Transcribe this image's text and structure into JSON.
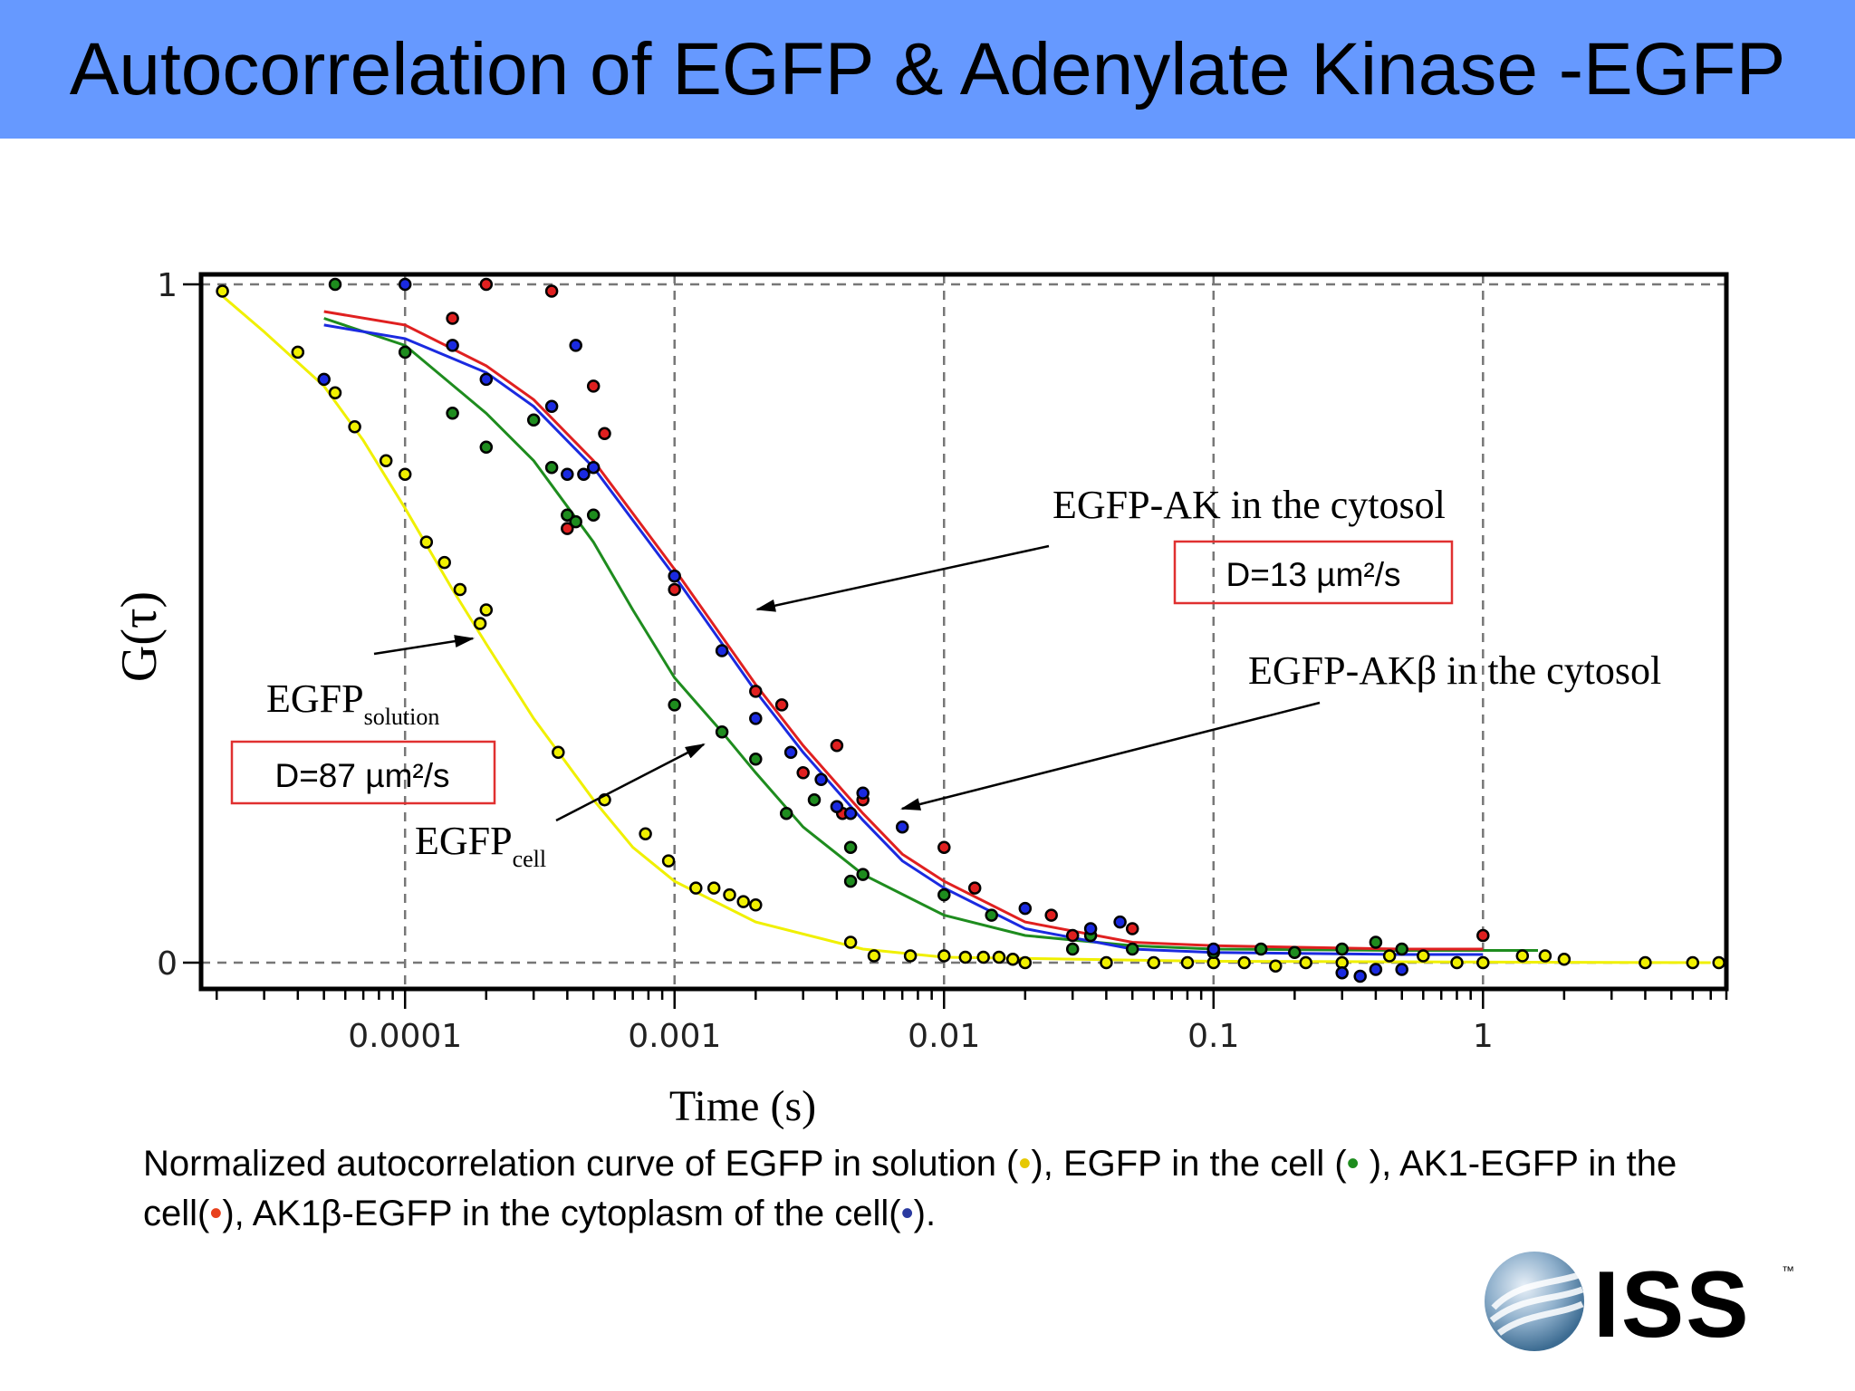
{
  "title": "Autocorrelation of EGFP & Adenylate Kinase -EGFP",
  "caption": {
    "t1": "Normalized autocorrelation curve of EGFP in solution (",
    "d1": "•",
    "t2": "), EGFP in the cell (",
    "d2": "•",
    "t3": " ), AK1-EGFP in the cell(",
    "d3": "•",
    "t4": "), AK1β-EGFP in the cytoplasm of the cell(",
    "d4": "•",
    "t5": ")."
  },
  "annotations": {
    "egfp_ak": "EGFP-AK in the cytosol",
    "egfp_ak_d": "D=13 µm²/s",
    "egfp_akb": "EGFP-AKβ in the cytosol",
    "egfp_solution_main": "EGFP",
    "egfp_solution_sub": "solution",
    "egfp_solution_d": "D=87 µm²/s",
    "egfp_cell_main": "EGFP",
    "egfp_cell_sub": "cell"
  },
  "logo": {
    "text": "ISS",
    "tm": "™"
  },
  "chart_data": {
    "type": "scatter",
    "title": "",
    "xlabel": "Time (s)",
    "ylabel": "G(τ)",
    "xscale": "log",
    "xlim": [
      1.75e-05,
      8
    ],
    "ylim": [
      0,
      1
    ],
    "xticks": [
      {
        "value": 0.0001,
        "label": "0.0001"
      },
      {
        "value": 0.001,
        "label": "0.001"
      },
      {
        "value": 0.01,
        "label": "0.01"
      },
      {
        "value": 0.1,
        "label": "0.1"
      },
      {
        "value": 1,
        "label": "1"
      }
    ],
    "yticks": [
      {
        "value": 0,
        "label": "0"
      },
      {
        "value": 1,
        "label": "1"
      }
    ],
    "grid": true,
    "series": [
      {
        "color": "#f0f000",
        "curve": [
          [
            2e-05,
            0.99
          ],
          [
            3e-05,
            0.93
          ],
          [
            5e-05,
            0.85
          ],
          [
            7e-05,
            0.77
          ],
          [
            0.0001,
            0.67
          ],
          [
            0.00015,
            0.55
          ],
          [
            0.0002,
            0.47
          ],
          [
            0.0003,
            0.36
          ],
          [
            0.0005,
            0.24
          ],
          [
            0.0007,
            0.17
          ],
          [
            0.001,
            0.12
          ],
          [
            0.002,
            0.06
          ],
          [
            0.005,
            0.02
          ],
          [
            0.01,
            0.008
          ],
          [
            0.1,
            0.002
          ],
          [
            7,
            0
          ]
        ],
        "points": [
          [
            2.1e-05,
            0.99
          ],
          [
            4e-05,
            0.9
          ],
          [
            5.5e-05,
            0.84
          ],
          [
            6.5e-05,
            0.79
          ],
          [
            8.5e-05,
            0.74
          ],
          [
            0.0001,
            0.72
          ],
          [
            0.00012,
            0.62
          ],
          [
            0.00014,
            0.59
          ],
          [
            0.00016,
            0.55
          ],
          [
            0.00019,
            0.5
          ],
          [
            0.0002,
            0.52
          ],
          [
            0.00037,
            0.31
          ],
          [
            0.00055,
            0.24
          ],
          [
            0.00078,
            0.19
          ],
          [
            0.00095,
            0.15
          ],
          [
            0.0012,
            0.11
          ],
          [
            0.0014,
            0.11
          ],
          [
            0.0016,
            0.1
          ],
          [
            0.0018,
            0.09
          ],
          [
            0.002,
            0.085
          ],
          [
            0.0045,
            0.03
          ],
          [
            0.0055,
            0.01
          ],
          [
            0.0075,
            0.01
          ],
          [
            0.01,
            0.01
          ],
          [
            0.012,
            0.008
          ],
          [
            0.014,
            0.008
          ],
          [
            0.016,
            0.008
          ],
          [
            0.018,
            0.005
          ],
          [
            0.02,
            0.0
          ],
          [
            0.04,
            0.0
          ],
          [
            0.06,
            0.0
          ],
          [
            0.08,
            0.0
          ],
          [
            0.1,
            0.0
          ],
          [
            0.13,
            0.0
          ],
          [
            0.17,
            -0.005
          ],
          [
            0.22,
            0.0
          ],
          [
            0.3,
            0.0
          ],
          [
            0.45,
            0.01
          ],
          [
            0.6,
            0.01
          ],
          [
            0.8,
            0.0
          ],
          [
            1,
            0.0
          ],
          [
            1.4,
            0.01
          ],
          [
            1.7,
            0.01
          ],
          [
            2,
            0.005
          ],
          [
            4,
            0.0
          ],
          [
            6,
            0.0
          ],
          [
            7.5,
            0.0
          ]
        ]
      },
      {
        "color": "#1e8c1e",
        "curve": [
          [
            5e-05,
            0.95
          ],
          [
            0.0001,
            0.91
          ],
          [
            0.0002,
            0.81
          ],
          [
            0.0003,
            0.74
          ],
          [
            0.0005,
            0.62
          ],
          [
            0.0007,
            0.52
          ],
          [
            0.001,
            0.42
          ],
          [
            0.0015,
            0.34
          ],
          [
            0.002,
            0.28
          ],
          [
            0.003,
            0.2
          ],
          [
            0.005,
            0.13
          ],
          [
            0.01,
            0.07
          ],
          [
            0.02,
            0.04
          ],
          [
            0.05,
            0.025
          ],
          [
            0.1,
            0.02
          ],
          [
            0.5,
            0.018
          ],
          [
            1.6,
            0.018
          ]
        ],
        "points": [
          [
            5.5e-05,
            1.0
          ],
          [
            0.0001,
            0.9
          ],
          [
            0.00015,
            0.81
          ],
          [
            0.0002,
            0.76
          ],
          [
            0.0003,
            0.8
          ],
          [
            0.00035,
            0.73
          ],
          [
            0.0004,
            0.66
          ],
          [
            0.00043,
            0.65
          ],
          [
            0.0005,
            0.66
          ],
          [
            0.001,
            0.38
          ],
          [
            0.0015,
            0.34
          ],
          [
            0.002,
            0.3
          ],
          [
            0.0026,
            0.22
          ],
          [
            0.0033,
            0.24
          ],
          [
            0.0045,
            0.12
          ],
          [
            0.0045,
            0.17
          ],
          [
            0.005,
            0.13
          ],
          [
            0.01,
            0.1
          ],
          [
            0.015,
            0.07
          ],
          [
            0.03,
            0.02
          ],
          [
            0.035,
            0.04
          ],
          [
            0.05,
            0.02
          ],
          [
            0.1,
            0.015
          ],
          [
            0.15,
            0.02
          ],
          [
            0.2,
            0.015
          ],
          [
            0.3,
            0.02
          ],
          [
            0.4,
            0.03
          ],
          [
            0.5,
            0.02
          ]
        ]
      },
      {
        "color": "#e02020",
        "curve": [
          [
            5e-05,
            0.96
          ],
          [
            0.0001,
            0.94
          ],
          [
            0.0002,
            0.88
          ],
          [
            0.0003,
            0.83
          ],
          [
            0.0005,
            0.74
          ],
          [
            0.001,
            0.58
          ],
          [
            0.002,
            0.41
          ],
          [
            0.003,
            0.32
          ],
          [
            0.005,
            0.22
          ],
          [
            0.007,
            0.16
          ],
          [
            0.01,
            0.12
          ],
          [
            0.02,
            0.06
          ],
          [
            0.05,
            0.03
          ],
          [
            0.1,
            0.025
          ],
          [
            0.5,
            0.02
          ],
          [
            1,
            0.02
          ]
        ],
        "points": [
          [
            0.00015,
            0.95
          ],
          [
            0.0002,
            1.0
          ],
          [
            0.00035,
            0.99
          ],
          [
            0.0005,
            0.85
          ],
          [
            0.00055,
            0.78
          ],
          [
            0.0004,
            0.64
          ],
          [
            0.001,
            0.55
          ],
          [
            0.002,
            0.4
          ],
          [
            0.0025,
            0.38
          ],
          [
            0.003,
            0.28
          ],
          [
            0.004,
            0.32
          ],
          [
            0.0042,
            0.22
          ],
          [
            0.005,
            0.24
          ],
          [
            0.01,
            0.17
          ],
          [
            0.013,
            0.11
          ],
          [
            0.025,
            0.07
          ],
          [
            0.03,
            0.04
          ],
          [
            0.05,
            0.05
          ],
          [
            1,
            0.04
          ]
        ]
      },
      {
        "color": "#1a2ae0",
        "curve": [
          [
            5e-05,
            0.94
          ],
          [
            0.0001,
            0.92
          ],
          [
            0.0002,
            0.87
          ],
          [
            0.0003,
            0.82
          ],
          [
            0.0005,
            0.73
          ],
          [
            0.001,
            0.57
          ],
          [
            0.002,
            0.4
          ],
          [
            0.003,
            0.31
          ],
          [
            0.005,
            0.21
          ],
          [
            0.007,
            0.15
          ],
          [
            0.01,
            0.11
          ],
          [
            0.02,
            0.05
          ],
          [
            0.05,
            0.02
          ],
          [
            0.1,
            0.015
          ],
          [
            0.5,
            0.012
          ],
          [
            1,
            0.012
          ]
        ],
        "points": [
          [
            5e-05,
            0.86
          ],
          [
            0.0001,
            1.0
          ],
          [
            0.00015,
            0.91
          ],
          [
            0.0002,
            0.86
          ],
          [
            0.00035,
            0.82
          ],
          [
            0.0004,
            0.72
          ],
          [
            0.00043,
            0.91
          ],
          [
            0.00046,
            0.72
          ],
          [
            0.0005,
            0.73
          ],
          [
            0.001,
            0.57
          ],
          [
            0.0015,
            0.46
          ],
          [
            0.002,
            0.36
          ],
          [
            0.0027,
            0.31
          ],
          [
            0.0035,
            0.27
          ],
          [
            0.004,
            0.23
          ],
          [
            0.0045,
            0.22
          ],
          [
            0.005,
            0.25
          ],
          [
            0.007,
            0.2
          ],
          [
            0.02,
            0.08
          ],
          [
            0.035,
            0.05
          ],
          [
            0.045,
            0.06
          ],
          [
            0.1,
            0.02
          ],
          [
            0.3,
            -0.015
          ],
          [
            0.35,
            -0.02
          ],
          [
            0.4,
            -0.01
          ],
          [
            0.5,
            -0.01
          ]
        ]
      }
    ]
  }
}
